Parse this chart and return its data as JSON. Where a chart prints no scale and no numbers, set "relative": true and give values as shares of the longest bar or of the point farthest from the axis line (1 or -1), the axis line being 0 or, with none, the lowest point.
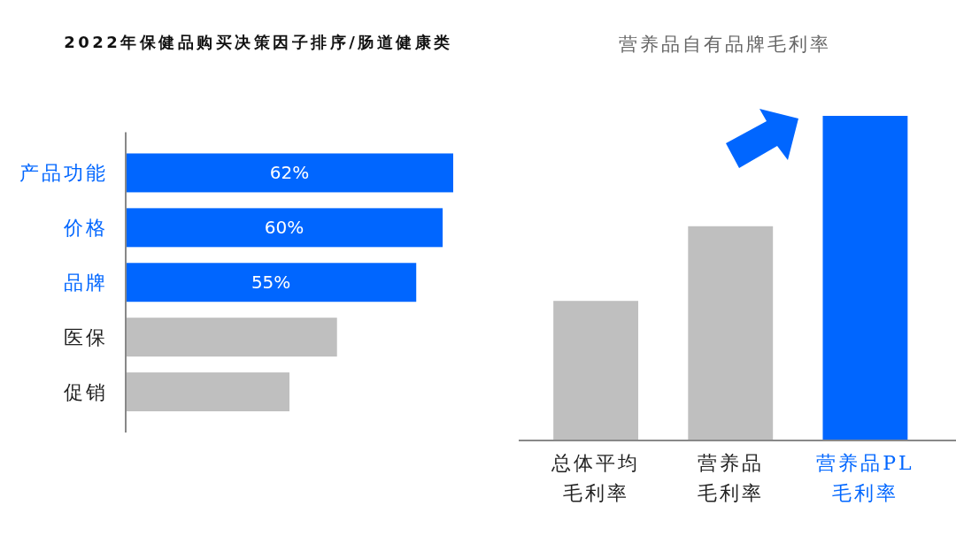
{
  "chart_data": [
    {
      "type": "bar",
      "title": "2022年保健品购买决策因子排序/肠道健康类",
      "orientation": "horizontal",
      "categories": [
        "产品功能",
        "价格",
        "品牌",
        "医保",
        "促销"
      ],
      "values": [
        62,
        60,
        55,
        40,
        31
      ],
      "colors": [
        "#0066ff",
        "#0066ff",
        "#0066ff",
        "#bfbfbf",
        "#bfbfbf"
      ],
      "value_labels": [
        "62%",
        "60%",
        "55%",
        null,
        null
      ]
    },
    {
      "type": "bar",
      "title": "营养品自有品牌毛利率",
      "categories": [
        "总体平均毛利率",
        "营养品毛利率",
        "营养品PL毛利率"
      ],
      "values": [
        0.43,
        0.66,
        1
      ],
      "colors": [
        "#bfbfbf",
        "#bfbfbf",
        "#0066ff"
      ],
      "relative": true
    }
  ]
}
